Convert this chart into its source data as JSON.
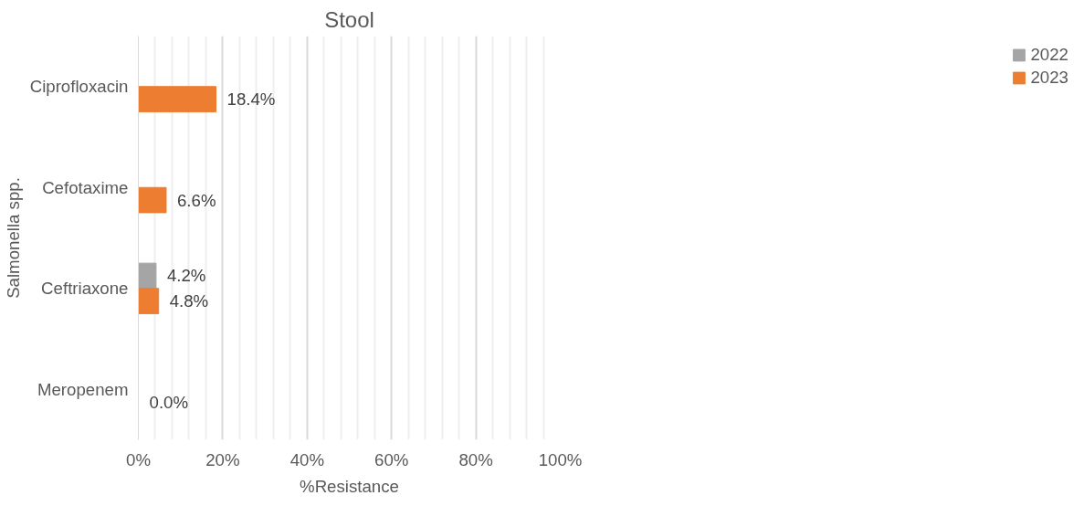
{
  "chart_data": {
    "type": "bar",
    "orientation": "horizontal",
    "title": "Stool",
    "xlabel": "%Resistance",
    "ylabel": "Salmonella spp.",
    "categories": [
      "Ciprofloxacin",
      "Cefotaxime",
      "Ceftriaxone",
      "Meropenem"
    ],
    "series": [
      {
        "name": "2022",
        "color": "#a5a5a5",
        "values": [
          null,
          null,
          4.2,
          null
        ],
        "value_labels": [
          null,
          null,
          "4.2%",
          null
        ]
      },
      {
        "name": "2023",
        "color": "#ed7d31",
        "values": [
          18.4,
          6.6,
          4.8,
          0.0
        ],
        "value_labels": [
          "18.4%",
          "6.6%",
          "4.8%",
          "0.0%"
        ]
      }
    ],
    "xlim": [
      0,
      100
    ],
    "xticks": [
      {
        "value": 0,
        "label": "0%"
      },
      {
        "value": 20,
        "label": "20%"
      },
      {
        "value": 40,
        "label": "40%"
      },
      {
        "value": 60,
        "label": "60%"
      },
      {
        "value": 80,
        "label": "80%"
      },
      {
        "value": 100,
        "label": "100%"
      }
    ],
    "grid": "x",
    "legend": "right"
  }
}
